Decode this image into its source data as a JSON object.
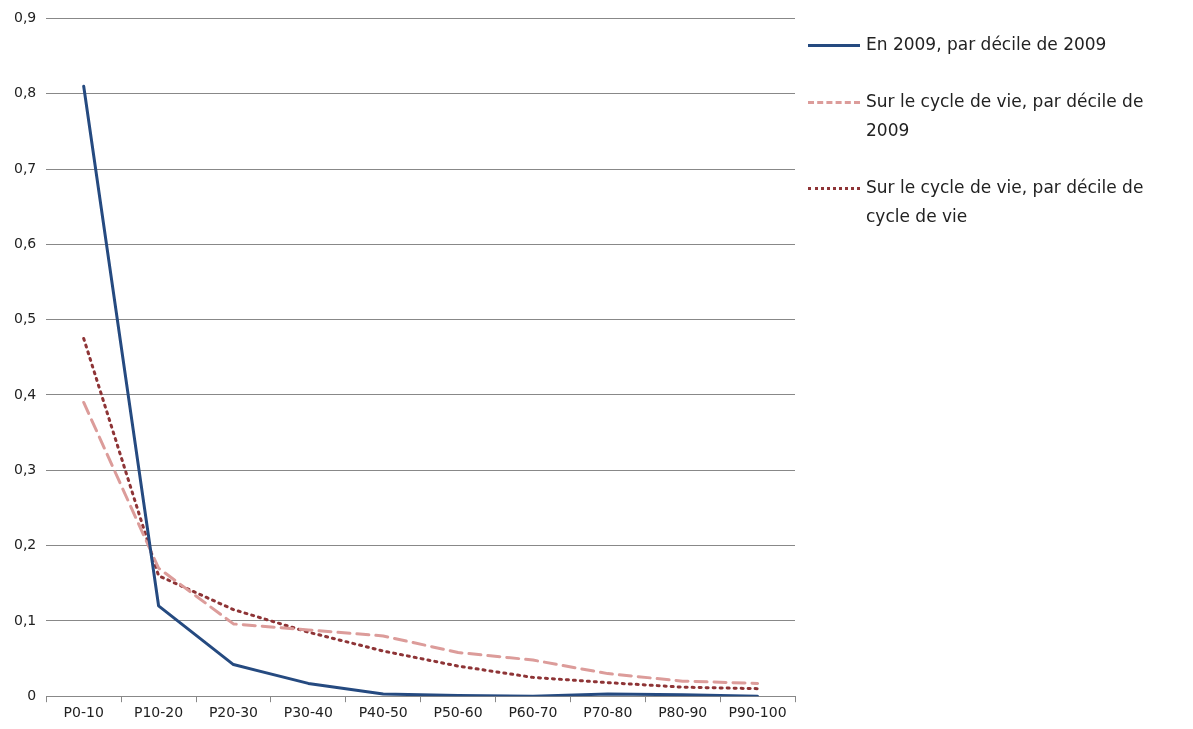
{
  "chart_data": {
    "type": "line",
    "categories": [
      "P0-10",
      "P10-20",
      "P20-30",
      "P30-40",
      "P40-50",
      "P50-60",
      "P60-70",
      "P70-80",
      "P80-90",
      "P90-100"
    ],
    "series": [
      {
        "name": "En 2009, par décile de 2009",
        "color": "#254a80",
        "line_style": "solid",
        "values": [
          0.81,
          0.12,
          0.042,
          0.017,
          0.003,
          0.001,
          0,
          0.003,
          0.002,
          0
        ]
      },
      {
        "name": "Sur le cycle de vie, par décile de 2009",
        "color": "#dc9c9a",
        "line_style": "dashed",
        "values": [
          0.39,
          0.17,
          0.096,
          0.088,
          0.08,
          0.058,
          0.048,
          0.03,
          0.02,
          0.017
        ]
      },
      {
        "name": "Sur le cycle de vie, par décile de cycle de vie",
        "color": "#8e3436",
        "line_style": "dotted",
        "values": [
          0.475,
          0.16,
          0.115,
          0.085,
          0.06,
          0.04,
          0.025,
          0.018,
          0.012,
          0.01
        ]
      }
    ],
    "ylim": [
      0,
      0.9
    ],
    "yticks": [
      0,
      {
        "value": 0.1,
        "label": "0,1"
      },
      {
        "value": 0.2,
        "label": "0,2"
      },
      {
        "value": 0.3,
        "label": "0,3"
      },
      {
        "value": 0.4,
        "label": "0,4"
      },
      {
        "value": 0.5,
        "label": "0,5"
      },
      {
        "value": 0.6,
        "label": "0,6"
      },
      {
        "value": 0.7,
        "label": "0,7"
      },
      {
        "value": 0.8,
        "label": "0,8"
      },
      {
        "value": 0.9,
        "label": "0,9"
      }
    ],
    "grid": "y",
    "legend": "right",
    "marker": "none"
  }
}
